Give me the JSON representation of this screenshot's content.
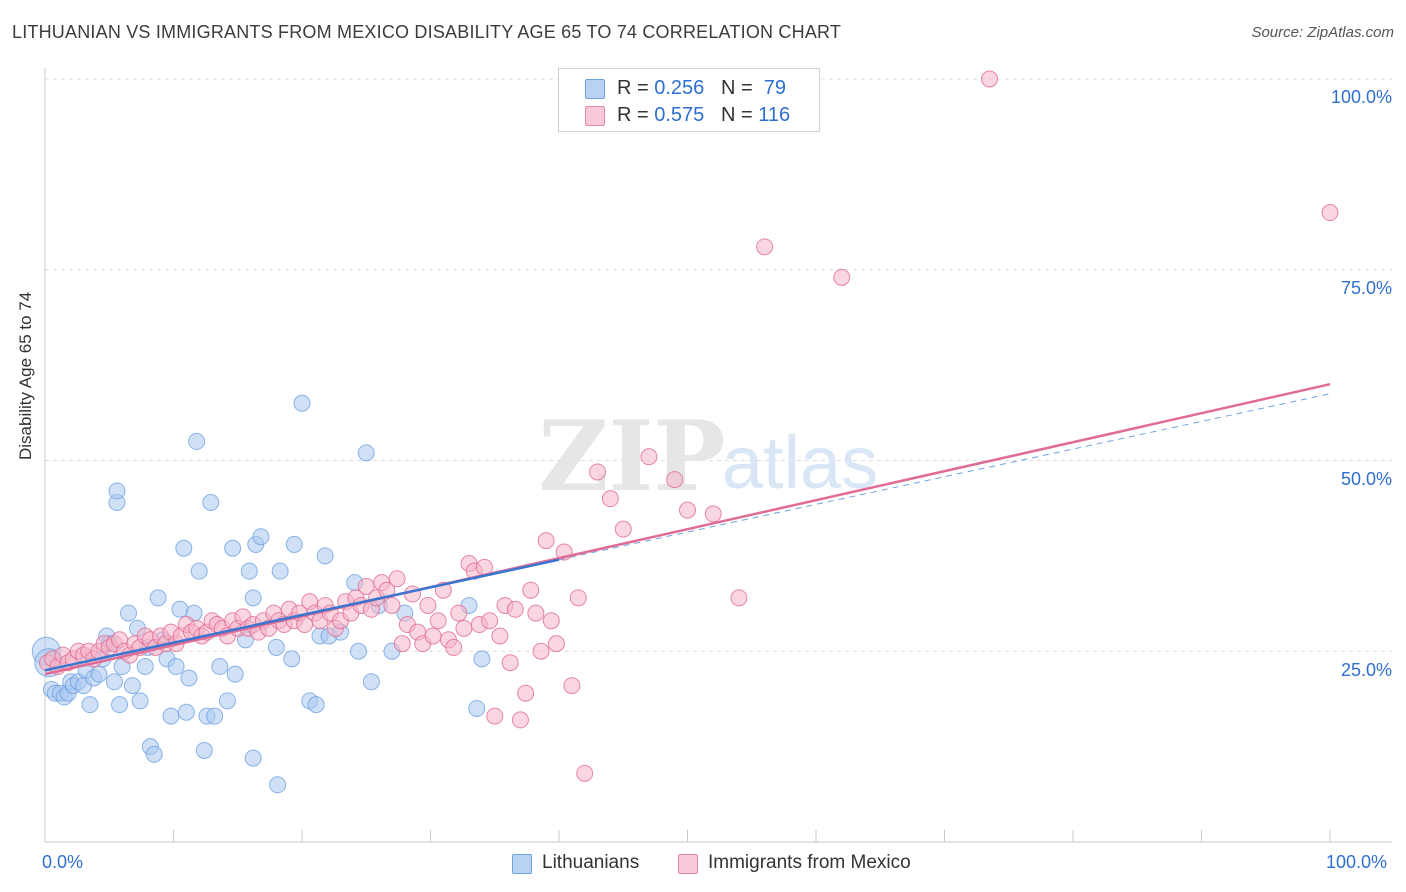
{
  "header": {
    "title": "LITHUANIAN VS IMMIGRANTS FROM MEXICO DISABILITY AGE 65 TO 74 CORRELATION CHART",
    "source": "Source: ZipAtlas.com"
  },
  "watermark": {
    "zip": "ZIP",
    "atlas": "atlas"
  },
  "legend": {
    "rows": [
      {
        "r_label": "R = ",
        "r_value": "0.256",
        "n_label": "N = ",
        "n_value": "79",
        "color": "#a9c8f0"
      },
      {
        "r_label": "R = ",
        "r_value": "0.575",
        "n_label": "N = ",
        "n_value": "116",
        "color": "#f5b5c8"
      }
    ]
  },
  "bottom_legend": {
    "items": [
      {
        "label": "Lithuanians",
        "color": "#a9c8f0"
      },
      {
        "label": "Immigrants from Mexico",
        "color": "#f5b5c8"
      }
    ]
  },
  "axes": {
    "ylabel": "Disability Age 65 to 74",
    "x_min_label": "0.0%",
    "x_max_label": "100.0%",
    "y_ticks": [
      "100.0%",
      "75.0%",
      "50.0%",
      "25.0%"
    ]
  },
  "chart_data": {
    "type": "scatter",
    "title": "LITHUANIAN VS IMMIGRANTS FROM MEXICO DISABILITY AGE 65 TO 74 CORRELATION CHART",
    "xlabel": "",
    "ylabel": "Disability Age 65 to 74",
    "xlim": [
      0,
      100
    ],
    "ylim": [
      0,
      102
    ],
    "grid": true,
    "legend_position": "top-center",
    "series": [
      {
        "name": "Lithuanians",
        "color": "#6fa3e0",
        "fill": "#a9c8f0",
        "r": 0.256,
        "n": 79,
        "trend": {
          "x0": 0,
          "y0": 22.5,
          "x1": 40,
          "y1": 37.0
        },
        "points": [
          [
            0.1,
            25.0
          ],
          [
            0.3,
            23.5
          ],
          [
            0.5,
            20.0
          ],
          [
            0.8,
            19.5
          ],
          [
            1.2,
            19.5
          ],
          [
            1.5,
            19.0
          ],
          [
            1.8,
            19.5
          ],
          [
            2.0,
            21.0
          ],
          [
            2.2,
            20.5
          ],
          [
            2.6,
            21.0
          ],
          [
            3.0,
            20.5
          ],
          [
            3.2,
            22.5
          ],
          [
            3.5,
            18.0
          ],
          [
            3.8,
            21.5
          ],
          [
            4.2,
            22.0
          ],
          [
            4.5,
            24.0
          ],
          [
            4.8,
            27.0
          ],
          [
            5.0,
            26.0
          ],
          [
            5.4,
            21.0
          ],
          [
            5.8,
            18.0
          ],
          [
            6.0,
            23.0
          ],
          [
            6.5,
            30.0
          ],
          [
            6.8,
            20.5
          ],
          [
            7.2,
            28.0
          ],
          [
            7.4,
            18.5
          ],
          [
            7.8,
            23.0
          ],
          [
            8.0,
            25.5
          ],
          [
            8.2,
            12.5
          ],
          [
            8.5,
            11.5
          ],
          [
            8.8,
            32.0
          ],
          [
            9.2,
            26.5
          ],
          [
            9.5,
            24.0
          ],
          [
            9.8,
            16.5
          ],
          [
            10.2,
            23.0
          ],
          [
            10.5,
            30.5
          ],
          [
            10.8,
            38.5
          ],
          [
            11.0,
            17.0
          ],
          [
            11.2,
            21.5
          ],
          [
            11.6,
            30.0
          ],
          [
            11.8,
            52.5
          ],
          [
            12.0,
            35.5
          ],
          [
            12.4,
            12.0
          ],
          [
            12.6,
            16.5
          ],
          [
            12.9,
            44.5
          ],
          [
            13.2,
            16.5
          ],
          [
            13.6,
            23.0
          ],
          [
            14.2,
            18.5
          ],
          [
            14.6,
            38.5
          ],
          [
            14.8,
            22.0
          ],
          [
            15.6,
            26.5
          ],
          [
            15.9,
            35.5
          ],
          [
            16.2,
            32.0
          ],
          [
            16.4,
            39.0
          ],
          [
            16.8,
            40.0
          ],
          [
            16.2,
            11.0
          ],
          [
            18.0,
            25.5
          ],
          [
            18.1,
            7.5
          ],
          [
            18.3,
            35.5
          ],
          [
            19.2,
            24.0
          ],
          [
            19.4,
            39.0
          ],
          [
            20.0,
            57.5
          ],
          [
            20.6,
            18.5
          ],
          [
            21.1,
            18.0
          ],
          [
            21.4,
            27.0
          ],
          [
            21.8,
            37.5
          ],
          [
            22.1,
            27.0
          ],
          [
            23.0,
            27.5
          ],
          [
            24.1,
            34.0
          ],
          [
            24.4,
            25.0
          ],
          [
            25.0,
            51.0
          ],
          [
            25.4,
            21.0
          ],
          [
            26.0,
            31.0
          ],
          [
            27.0,
            25.0
          ],
          [
            28.0,
            30.0
          ],
          [
            33.0,
            31.0
          ],
          [
            33.6,
            17.5
          ],
          [
            34.0,
            24.0
          ],
          [
            5.6,
            44.5
          ],
          [
            5.6,
            46.0
          ]
        ]
      },
      {
        "name": "Immigrants from Mexico",
        "color": "#e06b94",
        "fill": "#f5b5c8",
        "r": 0.575,
        "n": 116,
        "trend": {
          "x0": 0,
          "y0": 22.0,
          "x1": 100,
          "y1": 60.0
        },
        "points": [
          [
            0.2,
            23.5
          ],
          [
            0.6,
            24.0
          ],
          [
            1.0,
            23.0
          ],
          [
            1.4,
            24.5
          ],
          [
            1.8,
            23.5
          ],
          [
            2.2,
            24.0
          ],
          [
            2.6,
            25.0
          ],
          [
            3.0,
            24.5
          ],
          [
            3.4,
            25.0
          ],
          [
            3.8,
            24.0
          ],
          [
            4.2,
            25.0
          ],
          [
            4.6,
            26.0
          ],
          [
            5.0,
            25.5
          ],
          [
            5.4,
            26.0
          ],
          [
            5.8,
            26.5
          ],
          [
            6.2,
            25.0
          ],
          [
            6.6,
            24.5
          ],
          [
            7.0,
            26.0
          ],
          [
            7.4,
            25.5
          ],
          [
            7.8,
            27.0
          ],
          [
            8.2,
            26.5
          ],
          [
            8.6,
            25.5
          ],
          [
            9.0,
            27.0
          ],
          [
            9.4,
            26.0
          ],
          [
            9.8,
            27.5
          ],
          [
            10.2,
            26.0
          ],
          [
            10.6,
            27.0
          ],
          [
            11.0,
            28.5
          ],
          [
            11.4,
            27.5
          ],
          [
            11.8,
            28.0
          ],
          [
            12.2,
            27.0
          ],
          [
            12.6,
            27.5
          ],
          [
            13.0,
            29.0
          ],
          [
            13.4,
            28.5
          ],
          [
            13.8,
            28.0
          ],
          [
            14.2,
            27.0
          ],
          [
            14.6,
            29.0
          ],
          [
            15.0,
            28.0
          ],
          [
            15.4,
            29.5
          ],
          [
            15.8,
            28.0
          ],
          [
            16.2,
            28.5
          ],
          [
            16.6,
            27.5
          ],
          [
            17.0,
            29.0
          ],
          [
            17.4,
            28.0
          ],
          [
            17.8,
            30.0
          ],
          [
            18.2,
            29.0
          ],
          [
            18.6,
            28.5
          ],
          [
            19.0,
            30.5
          ],
          [
            19.4,
            29.0
          ],
          [
            19.8,
            30.0
          ],
          [
            20.2,
            28.5
          ],
          [
            20.6,
            31.5
          ],
          [
            21.0,
            30.0
          ],
          [
            21.4,
            29.0
          ],
          [
            21.8,
            31.0
          ],
          [
            22.2,
            30.0
          ],
          [
            22.6,
            28.0
          ],
          [
            23.0,
            29.0
          ],
          [
            23.4,
            31.5
          ],
          [
            23.8,
            30.0
          ],
          [
            24.2,
            32.0
          ],
          [
            24.6,
            31.0
          ],
          [
            25.0,
            33.5
          ],
          [
            25.4,
            30.5
          ],
          [
            25.8,
            32.0
          ],
          [
            26.2,
            34.0
          ],
          [
            26.6,
            33.0
          ],
          [
            27.0,
            31.0
          ],
          [
            27.4,
            34.5
          ],
          [
            27.8,
            26.0
          ],
          [
            28.2,
            28.5
          ],
          [
            28.6,
            32.5
          ],
          [
            29.0,
            27.5
          ],
          [
            29.4,
            26.0
          ],
          [
            29.8,
            31.0
          ],
          [
            30.2,
            27.0
          ],
          [
            30.6,
            29.0
          ],
          [
            31.0,
            33.0
          ],
          [
            31.4,
            26.5
          ],
          [
            31.8,
            25.5
          ],
          [
            32.2,
            30.0
          ],
          [
            32.6,
            28.0
          ],
          [
            33.0,
            36.5
          ],
          [
            33.4,
            35.5
          ],
          [
            33.8,
            28.5
          ],
          [
            34.2,
            36.0
          ],
          [
            34.6,
            29.0
          ],
          [
            35.0,
            16.5
          ],
          [
            35.4,
            27.0
          ],
          [
            35.8,
            31.0
          ],
          [
            36.2,
            23.5
          ],
          [
            36.6,
            30.5
          ],
          [
            37.0,
            16.0
          ],
          [
            37.4,
            19.5
          ],
          [
            37.8,
            33.0
          ],
          [
            38.2,
            30.0
          ],
          [
            38.6,
            25.0
          ],
          [
            39.0,
            39.5
          ],
          [
            39.4,
            29.0
          ],
          [
            39.8,
            26.0
          ],
          [
            40.4,
            38.0
          ],
          [
            41.0,
            20.5
          ],
          [
            41.5,
            32.0
          ],
          [
            42.0,
            9.0
          ],
          [
            43.0,
            48.5
          ],
          [
            44.0,
            45.0
          ],
          [
            45.0,
            41.0
          ],
          [
            47.0,
            50.5
          ],
          [
            49.0,
            47.5
          ],
          [
            50.0,
            43.5
          ],
          [
            52.0,
            43.0
          ],
          [
            54.0,
            32.0
          ],
          [
            56.0,
            78.0
          ],
          [
            62.0,
            74.0
          ],
          [
            73.5,
            100.0
          ],
          [
            100.0,
            82.5
          ]
        ]
      }
    ]
  }
}
